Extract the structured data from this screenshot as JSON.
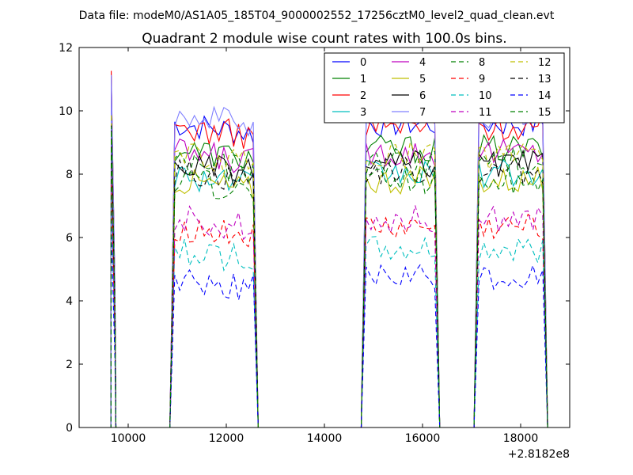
{
  "chart_data": {
    "type": "line",
    "suptitle": "Data file: modeM0/AS1A05_185T04_9000002552_17256cztM0_level2_quad_clean.evt",
    "title": "Quadrant 2 module wise count rates with 100.0s bins.",
    "xlabel": "",
    "ylabel": "",
    "x_offset_label": "+2.8182e8",
    "xlim": [
      9000,
      19000
    ],
    "ylim": [
      0,
      12
    ],
    "xticks": [
      10000,
      12000,
      14000,
      16000,
      18000
    ],
    "xtick_labels": [
      "10000",
      "12000",
      "14000",
      "16000",
      "18000"
    ],
    "yticks": [
      0,
      2,
      4,
      6,
      8,
      10,
      12
    ],
    "ytick_labels": [
      "0",
      "2",
      "4",
      "6",
      "8",
      "10",
      "12"
    ],
    "grid": false,
    "legend_placement": "top-right",
    "segments": [
      {
        "start": 9650,
        "end": 9750
      },
      {
        "start": 10950,
        "end": 12550
      },
      {
        "start": 14850,
        "end": 16250
      },
      {
        "start": 17150,
        "end": 18450
      }
    ],
    "series": [
      {
        "name": "0",
        "color": "#0000ff",
        "dash": "solid",
        "level": 9.6
      },
      {
        "name": "1",
        "color": "#008000",
        "dash": "solid",
        "level": 8.8
      },
      {
        "name": "2",
        "color": "#ff0000",
        "dash": "solid",
        "level": 9.5
      },
      {
        "name": "3",
        "color": "#00bfbf",
        "dash": "solid",
        "level": 8.0
      },
      {
        "name": "4",
        "color": "#bf00bf",
        "dash": "solid",
        "level": 8.7
      },
      {
        "name": "5",
        "color": "#bfbf00",
        "dash": "solid",
        "level": 7.8
      },
      {
        "name": "6",
        "color": "#000000",
        "dash": "solid",
        "level": 8.3
      },
      {
        "name": "7",
        "color": "#8080ff",
        "dash": "solid",
        "level": 9.9
      },
      {
        "name": "8",
        "color": "#008000",
        "dash": "dashed",
        "level": 8.4
      },
      {
        "name": "9",
        "color": "#ff0000",
        "dash": "dashed",
        "level": 6.3
      },
      {
        "name": "10",
        "color": "#00bfbf",
        "dash": "dashed",
        "level": 5.6
      },
      {
        "name": "11",
        "color": "#bf00bf",
        "dash": "dashed",
        "level": 6.6
      },
      {
        "name": "12",
        "color": "#bfbf00",
        "dash": "dashed",
        "level": 8.6
      },
      {
        "name": "13",
        "color": "#000000",
        "dash": "dashed",
        "level": 8.1
      },
      {
        "name": "14",
        "color": "#0000ff",
        "dash": "dashed",
        "level": 4.7
      },
      {
        "name": "15",
        "color": "#008000",
        "dash": "dashed",
        "level": 7.8
      }
    ]
  }
}
